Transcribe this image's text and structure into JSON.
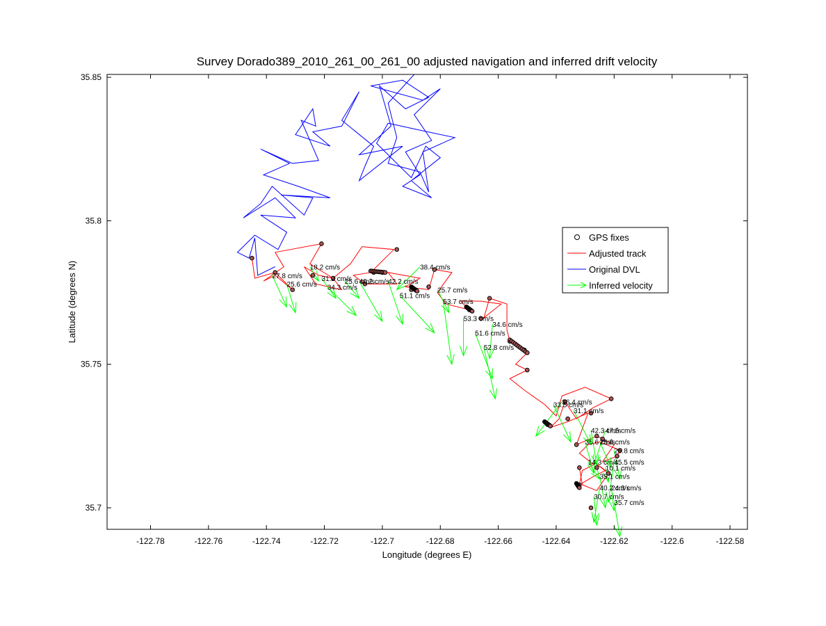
{
  "chart_data": {
    "type": "line",
    "title": "Survey Dorado389_2010_261_00_261_00 adjusted navigation and inferred drift velocity",
    "xlabel": "Longitude (degrees E)",
    "ylabel": "Latitude (degrees N)",
    "xlim": [
      -122.795,
      -122.574
    ],
    "ylim": [
      35.6925,
      35.851
    ],
    "xticks": [
      -122.78,
      -122.76,
      -122.74,
      -122.72,
      -122.7,
      -122.68,
      -122.66,
      -122.64,
      -122.62,
      -122.6,
      -122.58
    ],
    "xtick_labels": [
      "-122.78",
      "-122.76",
      "-122.74",
      "-122.72",
      "-122.7",
      "-122.68",
      "-122.66",
      "-122.64",
      "-122.62",
      "-122.6",
      "-122.58"
    ],
    "yticks": [
      35.7,
      35.75,
      35.8,
      35.85
    ],
    "ytick_labels": [
      "35.7",
      "35.75",
      "35.8",
      "35.85"
    ],
    "grid": false,
    "legend_position": "right",
    "legend": [
      {
        "label": "GPS fixes",
        "color": "#000000",
        "marker": "circle"
      },
      {
        "label": "Adjusted track",
        "color": "#ff0000",
        "marker": "line"
      },
      {
        "label": "Original DVL",
        "color": "#0000ff",
        "marker": "line"
      },
      {
        "label": "Inferred velocity",
        "color": "#00ff00",
        "marker": "arrow"
      }
    ],
    "series": [
      {
        "key": "original_dvl",
        "color": "#0000ff",
        "points": [
          [
            -122.737,
            35.784
          ],
          [
            -122.743,
            35.781
          ],
          [
            -122.744,
            35.794
          ],
          [
            -122.746,
            35.787
          ],
          [
            -122.75,
            35.789
          ],
          [
            -122.744,
            35.795
          ],
          [
            -122.736,
            35.79
          ],
          [
            -122.733,
            35.796
          ],
          [
            -122.742,
            35.802
          ],
          [
            -122.73,
            35.801
          ],
          [
            -122.737,
            35.808
          ],
          [
            -122.748,
            35.801
          ],
          [
            -122.742,
            35.806
          ],
          [
            -122.738,
            35.812
          ],
          [
            -122.727,
            35.802
          ],
          [
            -122.724,
            35.808
          ],
          [
            -122.735,
            35.809
          ],
          [
            -122.718,
            35.808
          ],
          [
            -122.729,
            35.812
          ],
          [
            -122.741,
            35.816
          ],
          [
            -122.732,
            35.82
          ],
          [
            -122.742,
            35.825
          ],
          [
            -122.731,
            35.82
          ],
          [
            -122.722,
            35.821
          ],
          [
            -122.728,
            35.835
          ],
          [
            -122.723,
            35.833
          ],
          [
            -122.724,
            35.839
          ],
          [
            -122.73,
            35.83
          ],
          [
            -122.718,
            35.826
          ],
          [
            -122.724,
            35.831
          ],
          [
            -122.714,
            35.833
          ],
          [
            -122.708,
            35.845
          ],
          [
            -122.714,
            35.835
          ],
          [
            -122.703,
            35.826
          ],
          [
            -122.706,
            35.819
          ],
          [
            -122.708,
            35.814
          ],
          [
            -122.693,
            35.826
          ],
          [
            -122.708,
            35.823
          ],
          [
            -122.697,
            35.833
          ],
          [
            -122.701,
            35.847
          ],
          [
            -122.692,
            35.839
          ],
          [
            -122.684,
            35.843
          ],
          [
            -122.693,
            35.849
          ],
          [
            -122.704,
            35.847
          ],
          [
            -122.686,
            35.842
          ],
          [
            -122.68,
            35.846
          ],
          [
            -122.689,
            35.837
          ],
          [
            -122.683,
            35.828
          ],
          [
            -122.692,
            35.824
          ],
          [
            -122.687,
            35.816
          ],
          [
            -122.693,
            35.812
          ],
          [
            -122.683,
            35.808
          ],
          [
            -122.69,
            35.814
          ],
          [
            -122.68,
            35.822
          ],
          [
            -122.685,
            35.826
          ],
          [
            -122.69,
            35.815
          ],
          [
            -122.694,
            35.819
          ],
          [
            -122.702,
            35.827
          ],
          [
            -122.698,
            35.834
          ],
          [
            -122.689,
            35.832
          ],
          [
            -122.675,
            35.829
          ],
          [
            -122.686,
            35.824
          ],
          [
            -122.684,
            35.81
          ],
          [
            -122.687,
            35.817
          ],
          [
            -122.698,
            35.82
          ],
          [
            -122.695,
            35.829
          ],
          [
            -122.698,
            35.841
          ],
          [
            -122.689,
            35.851
          ]
        ]
      },
      {
        "key": "adjusted_track",
        "color": "#ff0000",
        "points": [
          [
            -122.745,
            35.787
          ],
          [
            -122.744,
            35.78
          ],
          [
            -122.737,
            35.782
          ],
          [
            -122.731,
            35.776
          ],
          [
            -122.737,
            35.781
          ],
          [
            -122.741,
            35.779
          ],
          [
            -122.734,
            35.784
          ],
          [
            -122.737,
            35.789
          ],
          [
            -122.721,
            35.792
          ],
          [
            -122.725,
            35.785
          ],
          [
            -122.717,
            35.78
          ],
          [
            -122.722,
            35.781
          ],
          [
            -122.727,
            35.784
          ],
          [
            -122.723,
            35.778
          ],
          [
            -122.714,
            35.776
          ],
          [
            -122.717,
            35.78
          ],
          [
            -122.711,
            35.785
          ],
          [
            -122.707,
            35.791
          ],
          [
            -122.696,
            35.79
          ],
          [
            -122.701,
            35.785
          ],
          [
            -122.704,
            35.782
          ],
          [
            -122.71,
            35.781
          ],
          [
            -122.706,
            35.778
          ],
          [
            -122.695,
            35.778
          ],
          [
            -122.698,
            35.782
          ],
          [
            -122.687,
            35.78
          ],
          [
            -122.692,
            35.777
          ],
          [
            -122.684,
            35.776
          ],
          [
            -122.682,
            35.783
          ],
          [
            -122.676,
            35.782
          ],
          [
            -122.681,
            35.775
          ],
          [
            -122.678,
            35.771
          ],
          [
            -122.67,
            35.769
          ],
          [
            -122.673,
            35.772
          ],
          [
            -122.666,
            35.772
          ],
          [
            -122.659,
            35.771
          ],
          [
            -122.664,
            35.767
          ],
          [
            -122.665,
            35.766
          ],
          [
            -122.663,
            35.773
          ],
          [
            -122.657,
            35.771
          ],
          [
            -122.657,
            35.762
          ],
          [
            -122.656,
            35.758
          ],
          [
            -122.65,
            35.754
          ],
          [
            -122.654,
            35.75
          ],
          [
            -122.65,
            35.748
          ],
          [
            -122.656,
            35.745
          ],
          [
            -122.651,
            35.741
          ],
          [
            -122.644,
            35.736
          ],
          [
            -122.64,
            35.732
          ],
          [
            -122.638,
            35.739
          ],
          [
            -122.63,
            35.742
          ],
          [
            -122.621,
            35.738
          ],
          [
            -122.627,
            35.735
          ],
          [
            -122.633,
            35.731
          ],
          [
            -122.637,
            35.737
          ],
          [
            -122.639,
            35.731
          ],
          [
            -122.642,
            35.728
          ],
          [
            -122.636,
            35.73
          ],
          [
            -122.629,
            35.733
          ],
          [
            -122.633,
            35.722
          ],
          [
            -122.626,
            35.725
          ],
          [
            -122.62,
            35.722
          ],
          [
            -122.624,
            35.716
          ],
          [
            -122.619,
            35.718
          ],
          [
            -122.618,
            35.72
          ],
          [
            -122.625,
            35.723
          ],
          [
            -122.629,
            35.722
          ],
          [
            -122.632,
            35.719
          ],
          [
            -122.627,
            35.715
          ],
          [
            -122.631,
            35.713
          ],
          [
            -122.632,
            35.708
          ],
          [
            -122.627,
            35.711
          ],
          [
            -122.623,
            35.713
          ],
          [
            -122.627,
            35.716
          ],
          [
            -122.622,
            35.712
          ],
          [
            -122.626,
            35.706
          ],
          [
            -122.631,
            35.708
          ],
          [
            -122.632,
            35.714
          ]
        ]
      }
    ],
    "gps_fixes": [
      [
        -122.745,
        35.787
      ],
      [
        -122.737,
        35.782
      ],
      [
        -122.731,
        35.776
      ],
      [
        -122.721,
        35.792
      ],
      [
        -122.724,
        35.781
      ],
      [
        -122.717,
        35.78
      ],
      [
        -122.706,
        35.778
      ],
      [
        -122.703,
        35.782
      ],
      [
        -122.7,
        35.782
      ],
      [
        -122.695,
        35.79
      ],
      [
        -122.69,
        35.776
      ],
      [
        -122.684,
        35.777
      ],
      [
        -122.682,
        35.783
      ],
      [
        -122.67,
        35.769
      ],
      [
        -122.666,
        35.766
      ],
      [
        -122.663,
        35.773
      ],
      [
        -122.656,
        35.758
      ],
      [
        -122.651,
        35.755
      ],
      [
        -122.65,
        35.748
      ],
      [
        -122.643,
        35.729
      ],
      [
        -122.637,
        35.737
      ],
      [
        -122.636,
        35.731
      ],
      [
        -122.628,
        35.733
      ],
      [
        -122.621,
        35.738
      ],
      [
        -122.633,
        35.722
      ],
      [
        -122.626,
        35.725
      ],
      [
        -122.624,
        35.724
      ],
      [
        -122.619,
        35.718
      ],
      [
        -122.618,
        35.72
      ],
      [
        -122.632,
        35.714
      ],
      [
        -122.626,
        35.714
      ],
      [
        -122.622,
        35.712
      ],
      [
        -122.632,
        35.708
      ],
      [
        -122.628,
        35.7
      ]
    ],
    "dense_fixes": [
      [
        [
          -122.704,
          35.7825
        ],
        [
          -122.699,
          35.782
        ]
      ],
      [
        [
          -122.69,
          35.777
        ],
        [
          -122.688,
          35.7755
        ]
      ],
      [
        [
          -122.671,
          35.77
        ],
        [
          -122.669,
          35.7685
        ]
      ],
      [
        [
          -122.656,
          35.7585
        ],
        [
          -122.65,
          35.754
        ]
      ],
      [
        [
          -122.644,
          35.73
        ],
        [
          -122.642,
          35.7285
        ]
      ],
      [
        [
          -122.633,
          35.7085
        ],
        [
          -122.632,
          35.707
        ]
      ]
    ],
    "velocity_vectors": [
      {
        "label": "27.8 cm/s",
        "x": -122.738,
        "y": 35.781,
        "dx": 0.005,
        "dy": -0.011
      },
      {
        "label": "25.6 cm/s",
        "x": -122.733,
        "y": 35.778,
        "dx": 0.003,
        "dy": -0.01
      },
      {
        "label": "18.2 cm/s",
        "x": -122.725,
        "y": 35.784,
        "dx": 0.003,
        "dy": -0.005
      },
      {
        "label": "31.2 cm/s",
        "x": -122.721,
        "y": 35.78,
        "dx": 0.005,
        "dy": -0.007
      },
      {
        "label": "34.3 cm/s",
        "x": -122.719,
        "y": 35.777,
        "dx": 0.01,
        "dy": -0.01
      },
      {
        "label": "25.6 cm/s",
        "x": -122.713,
        "y": 35.779,
        "dx": 0.005,
        "dy": -0.006
      },
      {
        "label": "40.2 cm/s",
        "x": -122.708,
        "y": 35.779,
        "dx": 0.008,
        "dy": -0.014
      },
      {
        "label": "42.2 cm/s",
        "x": -122.698,
        "y": 35.779,
        "dx": 0.005,
        "dy": -0.015
      },
      {
        "label": "51.1 cm/s",
        "x": -122.694,
        "y": 35.774,
        "dx": 0.012,
        "dy": -0.013
      },
      {
        "label": "38.4 cm/s",
        "x": -122.687,
        "y": 35.784,
        "dx": -0.008,
        "dy": -0.008
      },
      {
        "label": "25.7 cm/s",
        "x": -122.681,
        "y": 35.776,
        "dx": 0.004,
        "dy": -0.008
      },
      {
        "label": "53.7 cm/s",
        "x": -122.679,
        "y": 35.772,
        "dx": 0.003,
        "dy": -0.022
      },
      {
        "label": "53.3 cm/s",
        "x": -122.672,
        "y": 35.766,
        "dx": 0.0,
        "dy": -0.013
      },
      {
        "label": "34.6 cm/s",
        "x": -122.662,
        "y": 35.764,
        "dx": -0.001,
        "dy": -0.012
      },
      {
        "label": "51.6 cm/s",
        "x": -122.668,
        "y": 35.761,
        "dx": 0.006,
        "dy": -0.016
      },
      {
        "label": "52.8 cm/s",
        "x": -122.665,
        "y": 35.756,
        "dx": 0.004,
        "dy": -0.018
      },
      {
        "label": "33.5 cm/s",
        "x": -122.641,
        "y": 35.736,
        "dx": 0.006,
        "dy": -0.013
      },
      {
        "label": "36.4 cm/s",
        "x": -122.638,
        "y": 35.737,
        "dx": -0.009,
        "dy": -0.012
      },
      {
        "label": "31.1 cm/s",
        "x": -122.634,
        "y": 35.734,
        "dx": 0.006,
        "dy": -0.012
      },
      {
        "label": "42.3 cm/s",
        "x": -122.628,
        "y": 35.727,
        "dx": 0.002,
        "dy": -0.012
      },
      {
        "label": "47.5 cm/s",
        "x": -122.623,
        "y": 35.727,
        "dx": -0.004,
        "dy": -0.012
      },
      {
        "label": "35.6 cm/s",
        "x": -122.63,
        "y": 35.723,
        "dx": 0.003,
        "dy": -0.011
      },
      {
        "label": "25.8 cm/s",
        "x": -122.625,
        "y": 35.723,
        "dx": 0.004,
        "dy": -0.009
      },
      {
        "label": "25.8 cm/s",
        "x": -122.62,
        "y": 35.72,
        "dx": 0.002,
        "dy": -0.01
      },
      {
        "label": "14.3 cm/s",
        "x": -122.629,
        "y": 35.716,
        "dx": 0.004,
        "dy": -0.006
      },
      {
        "label": "45.5 cm/s",
        "x": -122.62,
        "y": 35.716,
        "dx": -0.002,
        "dy": -0.014
      },
      {
        "label": "10.1 cm/s",
        "x": -122.623,
        "y": 35.714,
        "dx": 0.001,
        "dy": -0.005
      },
      {
        "label": "35.1 cm/s",
        "x": -122.625,
        "y": 35.711,
        "dx": 0.002,
        "dy": -0.011
      },
      {
        "label": "40.2 cm/s",
        "x": -122.625,
        "y": 35.707,
        "dx": -0.002,
        "dy": -0.012
      },
      {
        "label": "24.3 cm/s",
        "x": -122.621,
        "y": 35.707,
        "dx": 0.001,
        "dy": -0.008
      },
      {
        "label": "30.7 cm/s",
        "x": -122.627,
        "y": 35.704,
        "dx": 0.001,
        "dy": -0.01
      },
      {
        "label": "35.7 cm/s",
        "x": -122.62,
        "y": 35.702,
        "dx": 0.002,
        "dy": -0.012
      }
    ]
  }
}
